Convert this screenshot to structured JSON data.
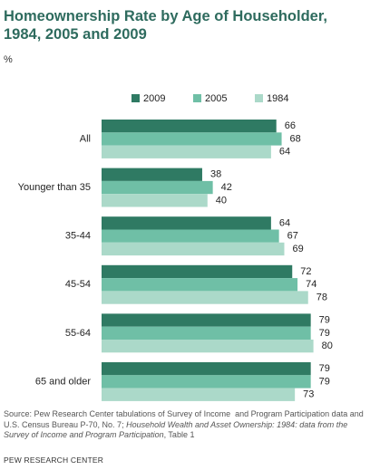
{
  "chart_data": {
    "type": "hbar",
    "title": "Homeownership Rate by Age of Householder, 1984, 2005 and 2009",
    "subtitle": "%",
    "categories": [
      "All",
      "Younger than 35",
      "35-44",
      "45-54",
      "55-64",
      "65 and older"
    ],
    "series": [
      {
        "name": "2009",
        "color": "#2f7a63",
        "values": [
          66,
          38,
          64,
          72,
          79,
          79
        ]
      },
      {
        "name": "2005",
        "color": "#6fbfa6",
        "values": [
          68,
          42,
          67,
          74,
          79,
          79
        ]
      },
      {
        "name": "1984",
        "color": "#abd9c9",
        "values": [
          64,
          40,
          69,
          78,
          80,
          73
        ]
      }
    ],
    "source": [
      "Source: Pew Research Center tabulations of Survey of Income  and Program Participation data and U.S. Census Bureau P-70, No. 7; ",
      "Household Wealth and Asset Ownership: 1984: data from the Survey of Income and Program Participation",
      ", Table 1"
    ],
    "footer": "PEW RESEARCH CENTER"
  }
}
